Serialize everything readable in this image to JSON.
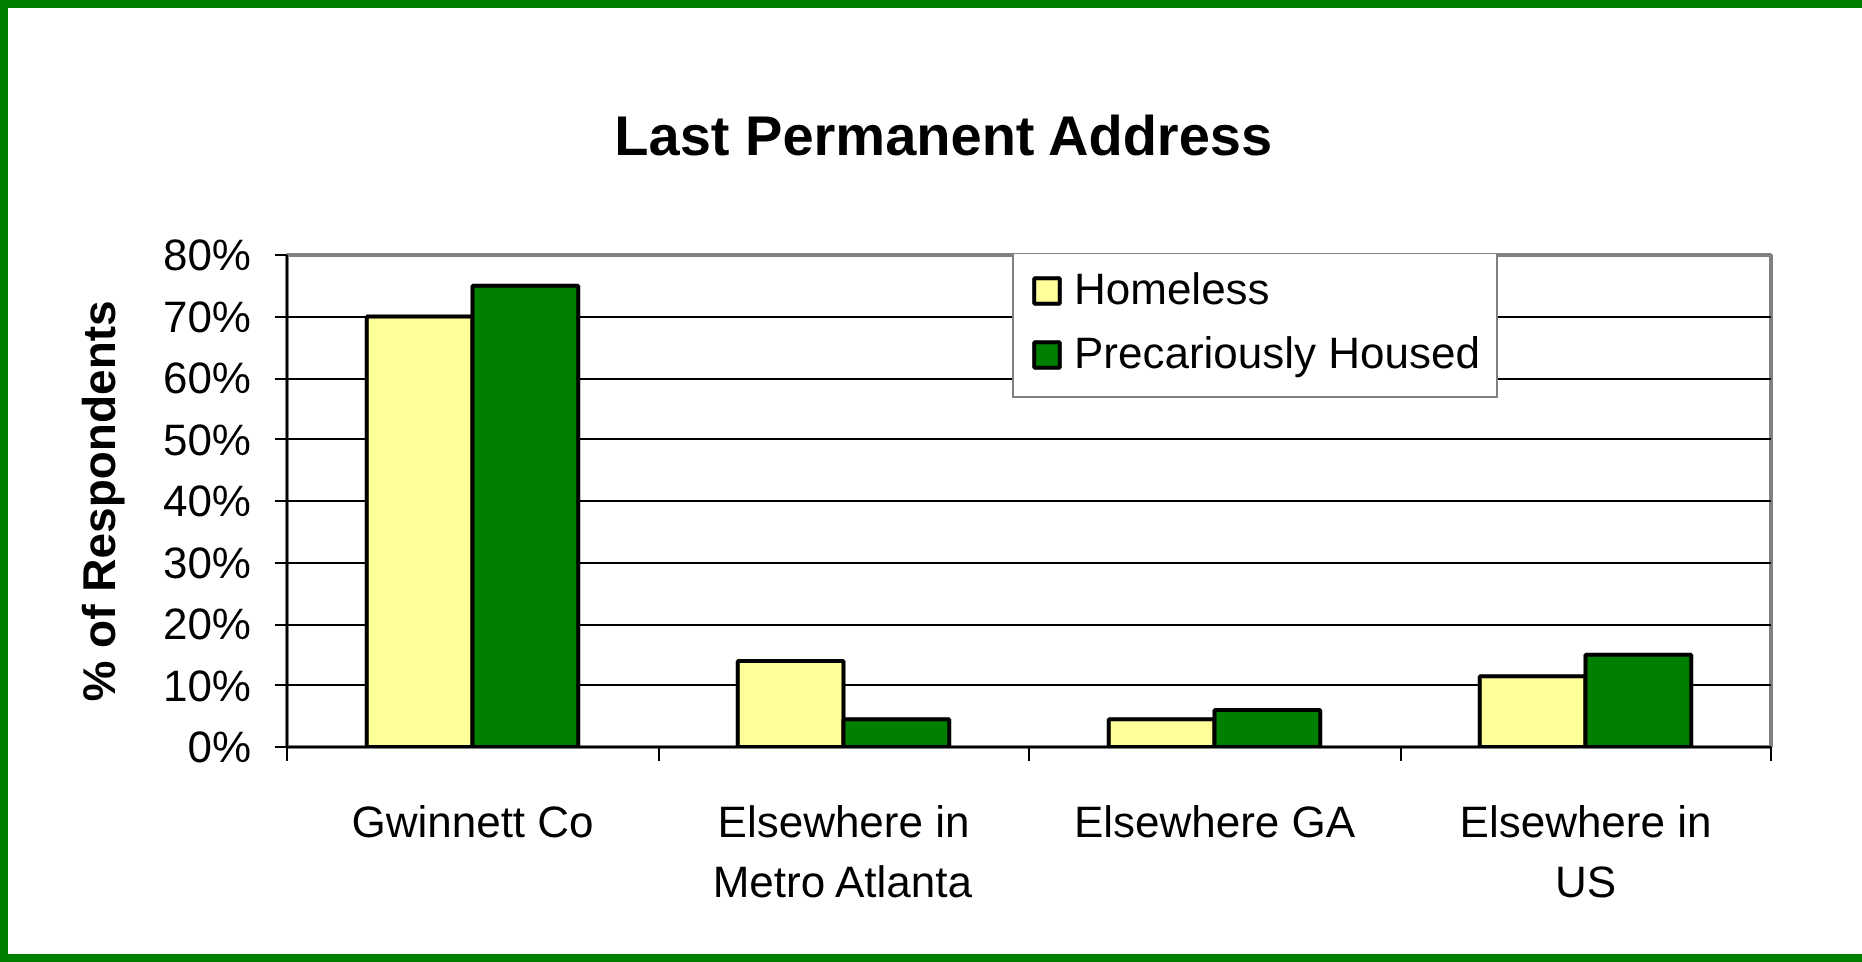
{
  "chart_data": {
    "type": "bar",
    "title": "Last Permanent Address",
    "ylabel": "% of Respondents",
    "categories": [
      "Gwinnett Co",
      "Elsewhere in Metro Atlanta",
      "Elsewhere GA",
      "Elsewhere in US"
    ],
    "series": [
      {
        "name": "Homeless",
        "color": "#ffff99",
        "values": [
          70,
          14,
          4.5,
          11.5
        ]
      },
      {
        "name": "Precariously Housed",
        "color": "#008000",
        "values": [
          75,
          4.5,
          6,
          15
        ]
      }
    ],
    "ylim": [
      0,
      80
    ],
    "yticks": [
      {
        "value": 0,
        "label": "0%"
      },
      {
        "value": 10,
        "label": "10%"
      },
      {
        "value": 20,
        "label": "20%"
      },
      {
        "value": 30,
        "label": "30%"
      },
      {
        "value": 40,
        "label": "40%"
      },
      {
        "value": 50,
        "label": "50%"
      },
      {
        "value": 60,
        "label": "60%"
      },
      {
        "value": 70,
        "label": "70%"
      },
      {
        "value": 80,
        "label": "80%"
      }
    ],
    "grid": "y",
    "legend": "top right"
  }
}
